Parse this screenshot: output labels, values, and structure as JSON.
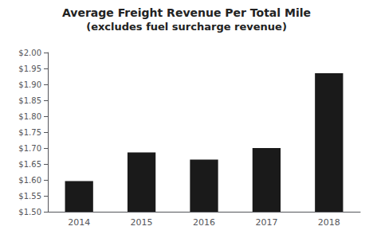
{
  "chart_data": {
    "type": "bar",
    "title": "Average Freight Revenue Per Total Mile",
    "subtitle": "(excludes fuel surcharge revenue)",
    "categories": [
      "2014",
      "2015",
      "2016",
      "2017",
      "2018"
    ],
    "values": [
      1.596,
      1.686,
      1.664,
      1.7,
      1.935
    ],
    "color": "#1a1a1a",
    "ylim": [
      1.5,
      2.0
    ],
    "yticks": [
      {
        "value": 1.5,
        "label": "$1.50"
      },
      {
        "value": 1.55,
        "label": "$1.55"
      },
      {
        "value": 1.6,
        "label": "$1.60"
      },
      {
        "value": 1.65,
        "label": "$1.65"
      },
      {
        "value": 1.7,
        "label": "$1.70"
      },
      {
        "value": 1.75,
        "label": "$1.75"
      },
      {
        "value": 1.8,
        "label": "$1.80"
      },
      {
        "value": 1.85,
        "label": "$1.85"
      },
      {
        "value": 1.9,
        "label": "$1.90"
      },
      {
        "value": 1.95,
        "label": "$1.95"
      },
      {
        "value": 2.0,
        "label": "$2.00"
      }
    ],
    "grid": false
  }
}
